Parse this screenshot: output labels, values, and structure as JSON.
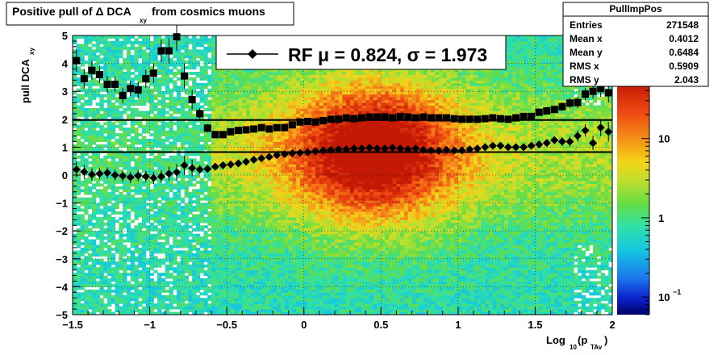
{
  "chart_data": {
    "type": "heatmap",
    "title": {
      "main": "Positive pull of Δ DCA",
      "sub": "xy",
      "tail": "from cosmics muons"
    },
    "xlabel": {
      "main": "Log",
      "sub1": "10",
      "mid": "(p",
      "sub2": "TAv",
      "tail": ")"
    },
    "ylabel": {
      "main": "pull DCA",
      "sub": "xy"
    },
    "xlim": [
      -1.5,
      2.0
    ],
    "ylim": [
      -5,
      5
    ],
    "xticks": [
      -1.5,
      -1,
      -0.5,
      0,
      0.5,
      1,
      1.5,
      2
    ],
    "xtick_labels": [
      "−1.5",
      "−1",
      "−0.5",
      "0",
      "0.5",
      "1",
      "1.5",
      "2"
    ],
    "yticks": [
      -5,
      -4,
      -3,
      -2,
      -1,
      0,
      1,
      2,
      3,
      4,
      5
    ],
    "ytick_labels": [
      "−5",
      "−4",
      "−3",
      "−2",
      "−1",
      "0",
      "1",
      "2",
      "3",
      "4",
      "5"
    ],
    "colorbar": {
      "scale": "log",
      "range": [
        0.06,
        50
      ],
      "ticks": [
        {
          "value": 10,
          "label": "10"
        },
        {
          "value": 1,
          "label": "1"
        },
        {
          "value": 0.1,
          "label": "10",
          "sup": "−1"
        }
      ]
    },
    "fit_lines": [
      {
        "name": "mean",
        "y": 0.824
      },
      {
        "name": "sigma",
        "y": 1.973
      }
    ],
    "legend": {
      "marker_label": "RF μ =  0.824, σ =   1.973"
    },
    "stats": {
      "title": "PullImpPos",
      "rows": [
        {
          "label": "Entries",
          "value": "271548"
        },
        {
          "label": "Mean x",
          "value": "0.4012"
        },
        {
          "label": "Mean y",
          "value": "0.6484"
        },
        {
          "label": "RMS x",
          "value": "0.5909"
        },
        {
          "label": "RMS y",
          "value": "2.043"
        }
      ]
    },
    "series": [
      {
        "marker": "diamond",
        "x": [
          -1.475,
          -1.425,
          -1.375,
          -1.325,
          -1.275,
          -1.225,
          -1.175,
          -1.125,
          -1.075,
          -1.025,
          -0.975,
          -0.925,
          -0.875,
          -0.825,
          -0.775,
          -0.725,
          -0.675,
          -0.625,
          -0.575,
          -0.525,
          -0.475,
          -0.425,
          -0.375,
          -0.325,
          -0.275,
          -0.225,
          -0.175,
          -0.125,
          -0.075,
          -0.025,
          0.025,
          0.075,
          0.125,
          0.175,
          0.225,
          0.275,
          0.325,
          0.375,
          0.425,
          0.475,
          0.525,
          0.575,
          0.625,
          0.675,
          0.725,
          0.775,
          0.825,
          0.875,
          0.925,
          0.975,
          1.025,
          1.075,
          1.125,
          1.175,
          1.225,
          1.275,
          1.325,
          1.375,
          1.425,
          1.475,
          1.525,
          1.575,
          1.625,
          1.675,
          1.725,
          1.775,
          1.825,
          1.875,
          1.925,
          1.975
        ],
        "y": [
          0.2,
          0.12,
          0.02,
          0.05,
          0.08,
          0.0,
          -0.03,
          -0.08,
          -0.02,
          -0.05,
          -0.1,
          -0.05,
          0.05,
          0.1,
          0.35,
          0.25,
          0.2,
          0.22,
          0.3,
          0.35,
          0.38,
          0.42,
          0.48,
          0.55,
          0.6,
          0.65,
          0.72,
          0.75,
          0.78,
          0.8,
          0.82,
          0.85,
          0.88,
          0.9,
          0.92,
          0.92,
          0.95,
          0.95,
          0.98,
          0.95,
          0.95,
          0.98,
          0.95,
          0.92,
          0.95,
          0.9,
          0.88,
          0.87,
          0.9,
          0.88,
          0.88,
          0.92,
          0.95,
          1.0,
          1.05,
          1.05,
          1.0,
          1.0,
          1.0,
          1.05,
          1.1,
          1.15,
          1.25,
          1.2,
          1.2,
          1.4,
          1.6,
          1.15,
          1.7,
          1.55
        ],
        "err": [
          0.28,
          0.25,
          0.22,
          0.2,
          0.2,
          0.2,
          0.2,
          0.2,
          0.2,
          0.2,
          0.22,
          0.22,
          0.25,
          0.3,
          0.35,
          0.3,
          0.15,
          0.12,
          0.1,
          0.08,
          0.07,
          0.06,
          0.06,
          0.05,
          0.05,
          0.05,
          0.05,
          0.05,
          0.05,
          0.05,
          0.05,
          0.05,
          0.05,
          0.05,
          0.05,
          0.05,
          0.05,
          0.05,
          0.05,
          0.05,
          0.05,
          0.05,
          0.05,
          0.05,
          0.05,
          0.05,
          0.05,
          0.05,
          0.05,
          0.05,
          0.05,
          0.05,
          0.05,
          0.05,
          0.06,
          0.06,
          0.07,
          0.07,
          0.08,
          0.08,
          0.1,
          0.12,
          0.14,
          0.15,
          0.18,
          0.2,
          0.22,
          0.25,
          0.3,
          0.35
        ]
      },
      {
        "marker": "square",
        "x": [
          -1.475,
          -1.425,
          -1.375,
          -1.325,
          -1.275,
          -1.225,
          -1.175,
          -1.125,
          -1.075,
          -1.025,
          -0.975,
          -0.925,
          -0.875,
          -0.825,
          -0.775,
          -0.725,
          -0.675,
          -0.625,
          -0.575,
          -0.525,
          -0.475,
          -0.425,
          -0.375,
          -0.325,
          -0.275,
          -0.225,
          -0.175,
          -0.125,
          -0.075,
          -0.025,
          0.025,
          0.075,
          0.125,
          0.175,
          0.225,
          0.275,
          0.325,
          0.375,
          0.425,
          0.475,
          0.525,
          0.575,
          0.625,
          0.675,
          0.725,
          0.775,
          0.825,
          0.875,
          0.925,
          0.975,
          1.025,
          1.075,
          1.125,
          1.175,
          1.225,
          1.275,
          1.325,
          1.375,
          1.425,
          1.475,
          1.525,
          1.575,
          1.625,
          1.675,
          1.725,
          1.775,
          1.825,
          1.875,
          1.925,
          1.975
        ],
        "y": [
          4.1,
          3.45,
          3.75,
          3.6,
          3.25,
          3.25,
          2.85,
          3.1,
          3.05,
          3.45,
          3.65,
          4.45,
          4.45,
          4.95,
          3.55,
          2.7,
          2.2,
          1.68,
          1.45,
          1.45,
          1.55,
          1.6,
          1.62,
          1.65,
          1.7,
          1.65,
          1.7,
          1.7,
          1.8,
          1.9,
          1.92,
          1.9,
          1.95,
          2.0,
          2.0,
          2.05,
          2.02,
          2.05,
          2.08,
          2.08,
          2.08,
          2.05,
          2.1,
          2.08,
          2.05,
          2.08,
          2.05,
          2.05,
          2.05,
          2.02,
          2.0,
          2.0,
          2.0,
          2.02,
          2.05,
          2.02,
          2.0,
          2.05,
          2.1,
          2.1,
          2.25,
          2.3,
          2.35,
          2.45,
          2.58,
          2.6,
          2.9,
          3.0,
          3.1,
          2.95
        ],
        "err": [
          0.4,
          0.35,
          0.35,
          0.3,
          0.3,
          0.28,
          0.28,
          0.28,
          0.3,
          0.32,
          0.35,
          0.4,
          0.45,
          0.5,
          0.45,
          0.35,
          0.2,
          0.15,
          0.12,
          0.1,
          0.08,
          0.07,
          0.06,
          0.06,
          0.06,
          0.05,
          0.05,
          0.05,
          0.05,
          0.05,
          0.05,
          0.05,
          0.05,
          0.05,
          0.05,
          0.05,
          0.05,
          0.05,
          0.05,
          0.05,
          0.05,
          0.05,
          0.05,
          0.05,
          0.05,
          0.05,
          0.05,
          0.05,
          0.05,
          0.05,
          0.05,
          0.05,
          0.05,
          0.05,
          0.06,
          0.06,
          0.07,
          0.07,
          0.08,
          0.08,
          0.1,
          0.12,
          0.14,
          0.15,
          0.18,
          0.2,
          0.22,
          0.25,
          0.3,
          0.35
        ]
      }
    ],
    "colors": {
      "frame": "#000000",
      "palette_low": "#000066",
      "palette_high": "#bb1100"
    }
  }
}
